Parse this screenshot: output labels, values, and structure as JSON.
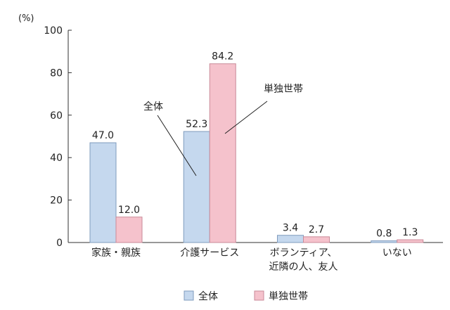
{
  "chart_data": {
    "type": "bar",
    "unit_label": "(%)",
    "categories": [
      [
        "家族・親族"
      ],
      [
        "介護サービス"
      ],
      [
        "ボランティア、",
        "近隣の人、友人"
      ],
      [
        "いない"
      ]
    ],
    "series": [
      {
        "name": "全体",
        "color": "#c5d8ee",
        "stroke": "#7f9bbd",
        "values": [
          47.0,
          52.3,
          3.4,
          0.8
        ],
        "value_labels": [
          "47.0",
          "52.3",
          "3.4",
          "0.8"
        ]
      },
      {
        "name": "単独世帯",
        "color": "#f5c2cc",
        "stroke": "#c98a98",
        "values": [
          12.0,
          84.2,
          2.7,
          1.3
        ],
        "value_labels": [
          "12.0",
          "84.2",
          "2.7",
          "1.3"
        ]
      }
    ],
    "ylim": [
      0,
      100
    ],
    "yticks": [
      0,
      20,
      40,
      60,
      80,
      100
    ],
    "ytick_labels": [
      "0",
      "20",
      "40",
      "60",
      "80",
      "100"
    ],
    "grid": false,
    "legend_position": "bottom-center",
    "annotations": [
      {
        "text": "全体",
        "series": 0
      },
      {
        "text": "単独世帯",
        "series": 1
      }
    ]
  }
}
